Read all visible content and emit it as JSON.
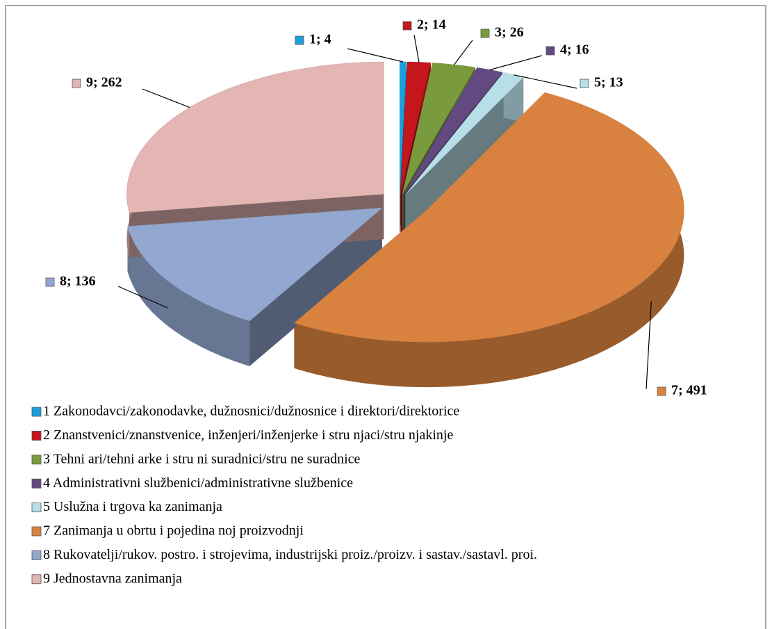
{
  "chart_data": {
    "type": "pie",
    "categories": [
      "1 Zakonodavci/zakonodavke, dužnosnici/dužnosnice i direktori/direktorice",
      "2 Znanstvenici/znanstvenice, inženjeri/inženjerke i stru  njaci/stru  njakinje",
      "3 Tehni  ari/tehni  arke i stru  ni suradnici/stru  ne suradnice",
      "4 Administrativni službenici/administrativne službenice",
      "5 Uslužna i trgova  ka zanimanja",
      "7 Zanimanja u obrtu i pojedina  noj proizvodnji",
      "8 Rukovatelji/rukov. postro. i strojevima, industrijski proiz./proizv. i sastav./sastavl. proi.",
      "9 Jednostavna zanimanja"
    ],
    "values": [
      4,
      14,
      26,
      16,
      13,
      491,
      136,
      262
    ],
    "value_labels": [
      "1; 4",
      "2; 14",
      "3; 26",
      "4; 16",
      "5; 13",
      "7; 491",
      "8; 136",
      "9; 262"
    ],
    "colors": [
      "#1c9fdc",
      "#c4161c",
      "#7a9a3e",
      "#624a80",
      "#b8dfe8",
      "#d9823f",
      "#93a8d0",
      "#e3b5b3"
    ]
  }
}
